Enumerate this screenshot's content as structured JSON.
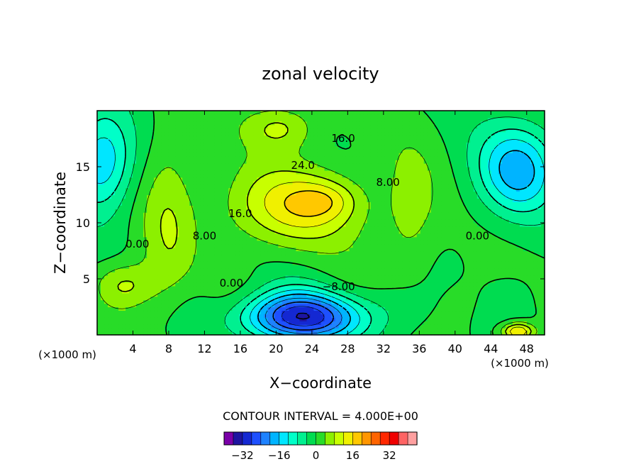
{
  "chart_data": {
    "type": "heatmap",
    "title": "zonal velocity",
    "xlabel": "X−coordinate",
    "ylabel": "Z−coordinate",
    "x_unit_left": "(×1000 m)",
    "x_unit_right": "(×1000 m)",
    "xlim": [
      0,
      50
    ],
    "ylim": [
      0,
      20
    ],
    "x_ticks": [
      4,
      8,
      12,
      16,
      20,
      24,
      28,
      32,
      36,
      40,
      44,
      48
    ],
    "y_ticks": [
      5,
      10,
      15
    ],
    "contour_interval_text": "CONTOUR INTERVAL = 4.000E+00",
    "contour_interval": 4,
    "contour_labels": [
      {
        "text": "24.0",
        "x": 23,
        "y": 14.8
      },
      {
        "text": "16.0",
        "x": 27.5,
        "y": 17.2
      },
      {
        "text": "16.0",
        "x": 16,
        "y": 10.5
      },
      {
        "text": "8.00",
        "x": 12,
        "y": 8.5
      },
      {
        "text": "8.00",
        "x": 32.5,
        "y": 13.3
      },
      {
        "text": "0.00",
        "x": 4.5,
        "y": 7.8
      },
      {
        "text": "0.00",
        "x": 42.5,
        "y": 8.5
      },
      {
        "text": "0.00",
        "x": 15,
        "y": 4.3
      },
      {
        "text": "−8.00",
        "x": 27,
        "y": 4.0
      }
    ],
    "colorbar": {
      "levels": [
        -36,
        -32,
        -28,
        -24,
        -20,
        -16,
        -12,
        -8,
        -4,
        0,
        4,
        8,
        12,
        16,
        20,
        24,
        28,
        32,
        36
      ],
      "colors": [
        "#7a00a8",
        "#1e14a0",
        "#1428d2",
        "#1e50ff",
        "#1e82ff",
        "#00b4ff",
        "#00e6ff",
        "#00ffc8",
        "#00f090",
        "#00dc50",
        "#28dc28",
        "#8cf000",
        "#c8ff00",
        "#f0f000",
        "#ffc800",
        "#ff9600",
        "#ff6400",
        "#ff2800",
        "#f00000",
        "#ff6464",
        "#ffa0a0"
      ],
      "tick_labels": [
        -32,
        -16,
        0,
        16,
        32
      ]
    },
    "features": [
      {
        "kind": "jet-max",
        "x": 22,
        "y": 11.5,
        "amp": 14,
        "sx": 7.5,
        "sy": 3.6
      },
      {
        "kind": "jet-upper",
        "x": 20.5,
        "y": 18.5,
        "amp": 9,
        "sx": 4.0,
        "sy": 2.0
      },
      {
        "kind": "jet-core",
        "x": 25.5,
        "y": 12.0,
        "amp": 6,
        "sx": 3.5,
        "sy": 1.6
      },
      {
        "kind": "low-level-min",
        "x": 23,
        "y": 1.6,
        "amp": -30,
        "sx": 7.0,
        "sy": 2.2
      },
      {
        "kind": "upper-right-min",
        "x": 47,
        "y": 14.8,
        "amp": -18,
        "sx": 4.5,
        "sy": 4.0
      },
      {
        "kind": "left-min",
        "x": 0.5,
        "y": 15.5,
        "amp": -16,
        "sx": 3.5,
        "sy": 4.5
      },
      {
        "kind": "ridge",
        "x": 8,
        "y": 10,
        "amp": 7,
        "sx": 3.0,
        "sy": 9.0
      },
      {
        "kind": "ridge",
        "x": 35,
        "y": 11,
        "amp": 6,
        "sx": 3.0,
        "sy": 6.0
      },
      {
        "kind": "surface-max",
        "x": 47,
        "y": 0.3,
        "amp": 18,
        "sx": 1.8,
        "sy": 0.8
      },
      {
        "kind": "lower-left-max",
        "x": 3,
        "y": 4.5,
        "amp": 8,
        "sx": 3.5,
        "sy": 2.0
      }
    ]
  }
}
